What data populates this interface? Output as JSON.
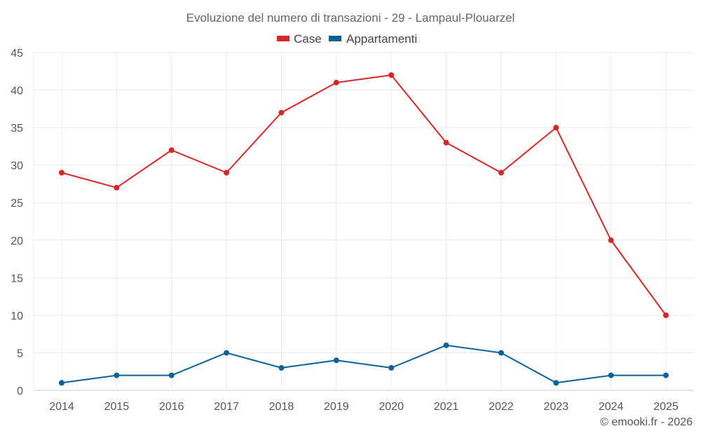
{
  "chart_data": {
    "type": "line",
    "title": "Evoluzione del numero di transazioni - 29 - Lampaul-Plouarzel",
    "categories": [
      "2014",
      "2015",
      "2016",
      "2017",
      "2018",
      "2019",
      "2020",
      "2021",
      "2022",
      "2023",
      "2024",
      "2025"
    ],
    "series": [
      {
        "name": "Case",
        "color": "#d62728",
        "values": [
          29,
          27,
          32,
          29,
          37,
          41,
          42,
          33,
          29,
          35,
          20,
          10
        ]
      },
      {
        "name": "Appartamenti",
        "color": "#0b629b",
        "values": [
          1,
          2,
          2,
          5,
          3,
          4,
          3,
          6,
          5,
          1,
          2,
          2
        ]
      }
    ],
    "ylim": [
      0,
      45
    ],
    "yticks": [
      "0",
      "5",
      "10",
      "15",
      "20",
      "25",
      "30",
      "35",
      "40",
      "45"
    ],
    "xlabel": "",
    "ylabel": "",
    "grid": true,
    "legend": "top-center"
  },
  "credit": "© emooki.fr - 2026"
}
